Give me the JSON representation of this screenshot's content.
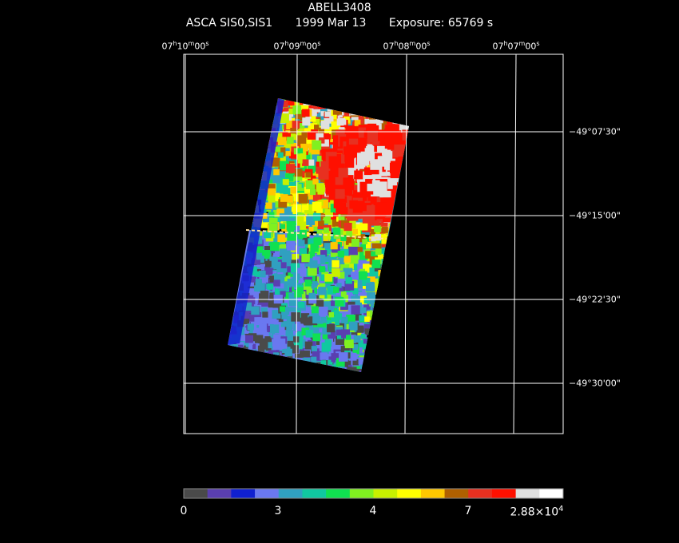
{
  "header": {
    "target": "ABELL3408",
    "instrument": "ASCA SIS0,SIS1",
    "date": "1999 Mar 13",
    "exposure": "Exposure: 65769 s"
  },
  "ra_ticks": [
    {
      "h": "07",
      "m": "10",
      "s": "00"
    },
    {
      "h": "07",
      "m": "09",
      "s": "00"
    },
    {
      "h": "07",
      "m": "08",
      "s": "00"
    },
    {
      "h": "07",
      "m": "07",
      "s": "00"
    }
  ],
  "dec_ticks": [
    "−49°07'30\"",
    "−49°15'00\"",
    "−49°22'30\"",
    "−49°30'00\""
  ],
  "colorbar": {
    "colors": [
      "#4a4a4a",
      "#5a3fb0",
      "#1020d0",
      "#6a78f0",
      "#30a0c0",
      "#10c8a0",
      "#10e050",
      "#80f020",
      "#c8f000",
      "#ffff00",
      "#ffc800",
      "#b06000",
      "#e83020",
      "#ff1000",
      "#e0e0e0",
      "#ffffff"
    ],
    "labels": [
      "0",
      "3",
      "4",
      "7"
    ],
    "max_label_base": "2.88×10",
    "max_label_exp": "4"
  }
}
